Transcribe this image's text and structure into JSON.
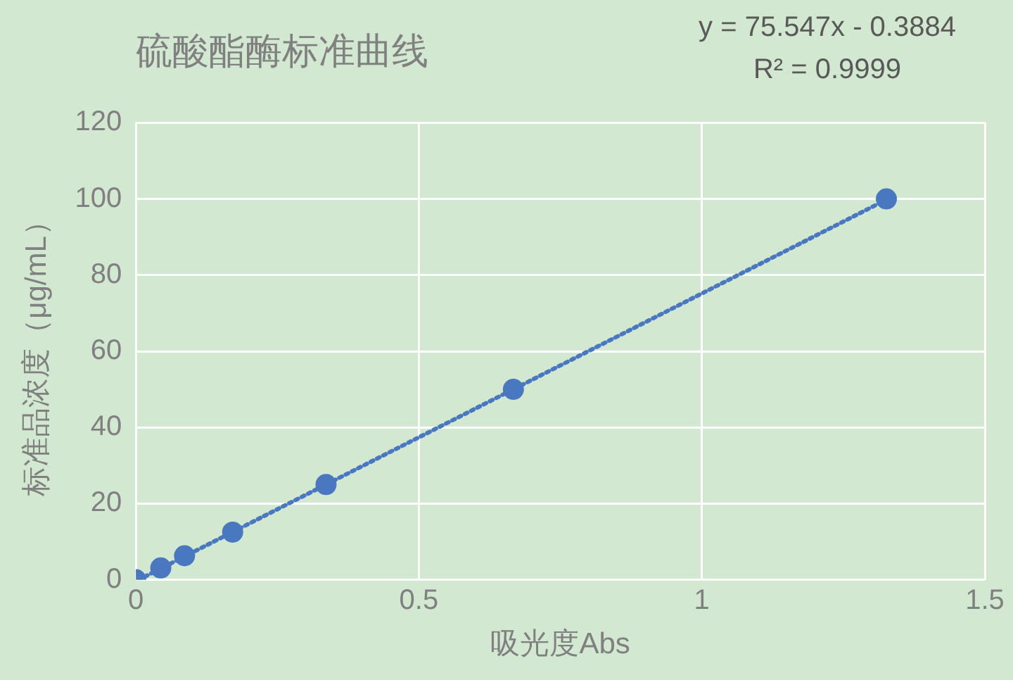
{
  "chart_data": {
    "type": "scatter",
    "title": "硫酸酯酶标准曲线",
    "xlabel": "吸光度Abs",
    "ylabel": "标准品浓度（μg/mL）",
    "annotations": [
      "y = 75.547x - 0.3884",
      "R² = 0.9999"
    ],
    "xlim": [
      0,
      1.5
    ],
    "xticks": [
      0,
      0.5,
      1,
      1.5
    ],
    "ylim": [
      0,
      120
    ],
    "yticks": [
      0,
      20,
      40,
      60,
      80,
      100,
      120
    ],
    "grid": true,
    "series": [
      {
        "type": "scatter",
        "color": "#4a78c0",
        "marker": "circle",
        "x": [
          0,
          0.044,
          0.086,
          0.171,
          0.336,
          0.667,
          1.326
        ],
        "values": [
          0,
          3.1,
          6.3,
          12.5,
          25,
          50,
          100
        ]
      },
      {
        "type": "line",
        "color": "#4a78c0",
        "marker": "none",
        "line_style": "dotted",
        "x": [
          0.005,
          1.33
        ],
        "values": [
          0,
          100.1
        ]
      }
    ]
  }
}
